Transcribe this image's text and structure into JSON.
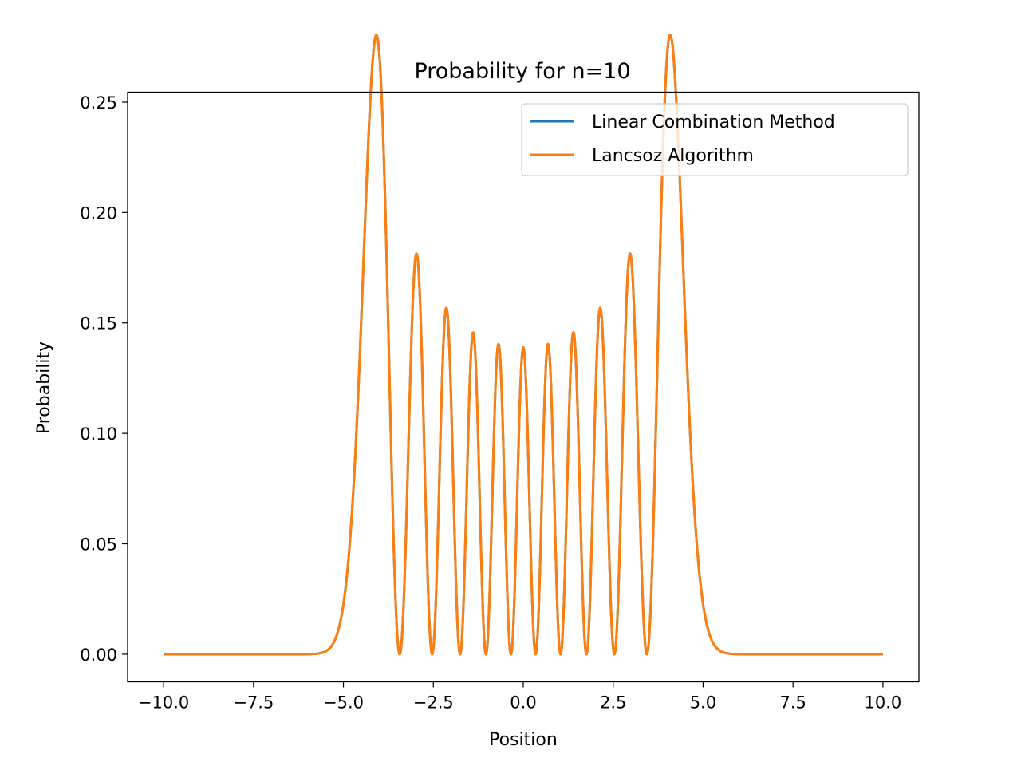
{
  "chart_data": {
    "type": "line",
    "title": "Probability for n=10",
    "xlabel": "Position",
    "ylabel": "Probability",
    "xlim": [
      -11.0,
      11.0
    ],
    "ylim": [
      -0.0125,
      0.2545
    ],
    "xticks": [
      -10.0,
      -7.5,
      -5.0,
      -2.5,
      0.0,
      2.5,
      5.0,
      7.5,
      10.0
    ],
    "xtick_labels": [
      "−10.0",
      "−7.5",
      "−5.0",
      "−2.5",
      "0.0",
      "2.5",
      "5.0",
      "7.5",
      "10.0"
    ],
    "yticks": [
      0.0,
      0.05,
      0.1,
      0.15,
      0.2,
      0.25
    ],
    "ytick_labels": [
      "0.00",
      "0.05",
      "0.10",
      "0.15",
      "0.20",
      "0.25"
    ],
    "x_range": [
      -10.0,
      10.0
    ],
    "quantum_number": 10,
    "grid": false,
    "legend_position": "top-right",
    "series": [
      {
        "name": "Linear Combination Method",
        "color": "#1f77b4",
        "style": "solid"
      },
      {
        "name": "Lancsoz Algorithm",
        "color": "#ff7f0e",
        "style": "solid"
      }
    ]
  }
}
